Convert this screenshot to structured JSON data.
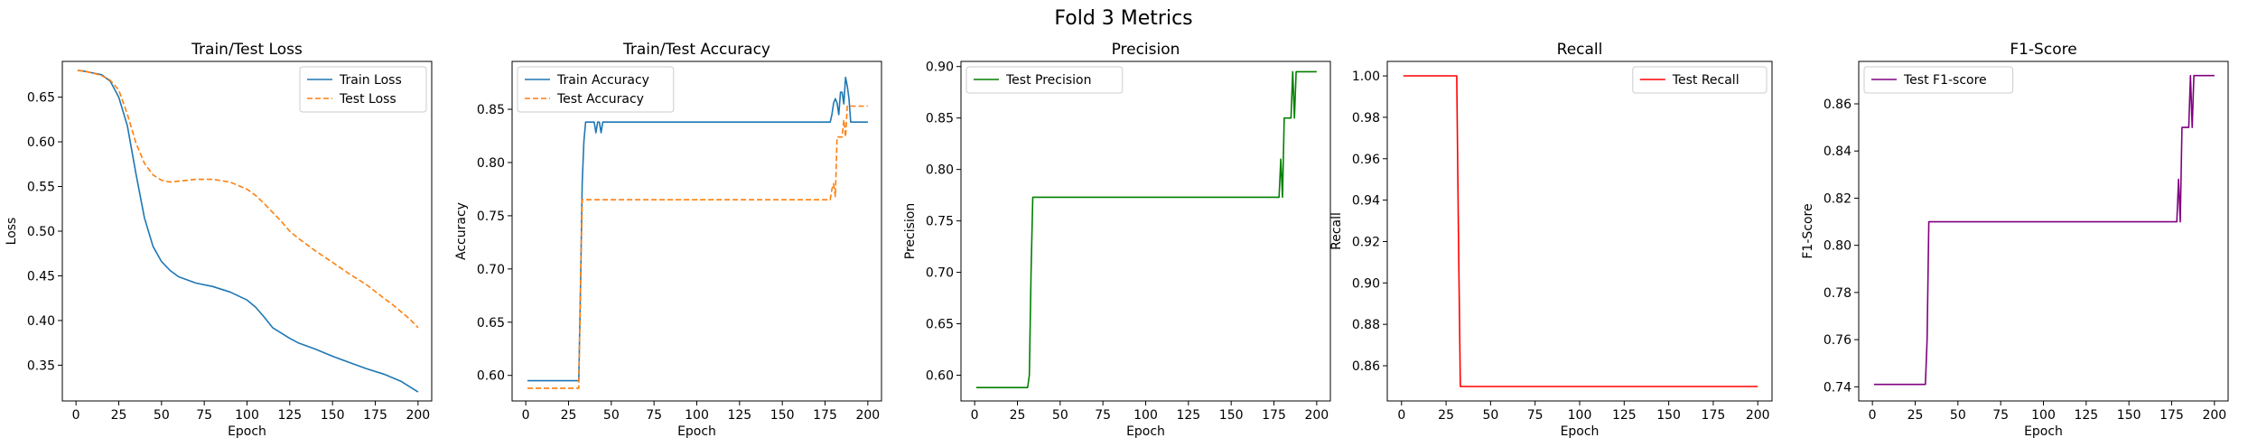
{
  "figure": {
    "title": "Fold 3 Metrics"
  },
  "colors": {
    "blue": "#1f77b4",
    "orange": "#ff7f0e",
    "green": "#008000",
    "red": "#ff0000",
    "purple": "#800080"
  },
  "chart_data": [
    {
      "type": "line",
      "title": "Train/Test Loss",
      "xlabel": "Epoch",
      "ylabel": "Loss",
      "xlim": [
        -8,
        208
      ],
      "ylim": [
        0.31,
        0.69
      ],
      "xticks": [
        0,
        25,
        50,
        75,
        100,
        125,
        150,
        175,
        200
      ],
      "yticks": [
        0.35,
        0.4,
        0.45,
        0.5,
        0.55,
        0.6,
        0.65
      ],
      "ytick_labels": [
        "0.35",
        "0.40",
        "0.45",
        "0.50",
        "0.55",
        "0.60",
        "0.65"
      ],
      "legend": "upper right",
      "series": [
        {
          "name": "Train Loss",
          "color": "#1f77b4",
          "dash": "solid",
          "x": [
            1,
            5,
            10,
            15,
            20,
            25,
            30,
            35,
            40,
            45,
            50,
            55,
            60,
            70,
            80,
            90,
            100,
            105,
            110,
            115,
            120,
            125,
            130,
            140,
            150,
            160,
            170,
            180,
            190,
            200
          ],
          "y": [
            0.68,
            0.679,
            0.677,
            0.675,
            0.668,
            0.65,
            0.618,
            0.565,
            0.515,
            0.483,
            0.466,
            0.456,
            0.449,
            0.442,
            0.438,
            0.432,
            0.423,
            0.415,
            0.404,
            0.392,
            0.386,
            0.38,
            0.375,
            0.368,
            0.36,
            0.353,
            0.346,
            0.34,
            0.332,
            0.32
          ]
        },
        {
          "name": "Test Loss",
          "color": "#ff7f0e",
          "dash": "dashed",
          "x": [
            1,
            5,
            10,
            15,
            20,
            25,
            30,
            35,
            40,
            45,
            50,
            55,
            60,
            70,
            80,
            90,
            100,
            105,
            110,
            115,
            120,
            125,
            130,
            140,
            150,
            160,
            170,
            180,
            185,
            190,
            195,
            200
          ],
          "y": [
            0.68,
            0.679,
            0.677,
            0.674,
            0.669,
            0.658,
            0.631,
            0.599,
            0.576,
            0.563,
            0.557,
            0.555,
            0.556,
            0.558,
            0.558,
            0.555,
            0.547,
            0.54,
            0.531,
            0.521,
            0.511,
            0.5,
            0.492,
            0.478,
            0.465,
            0.452,
            0.44,
            0.425,
            0.418,
            0.41,
            0.402,
            0.392
          ]
        }
      ]
    },
    {
      "type": "line",
      "title": "Train/Test Accuracy",
      "xlabel": "Epoch",
      "ylabel": "Accuracy",
      "xlim": [
        -8,
        208
      ],
      "ylim": [
        0.576,
        0.895
      ],
      "xticks": [
        0,
        25,
        50,
        75,
        100,
        125,
        150,
        175,
        200
      ],
      "yticks": [
        0.6,
        0.65,
        0.7,
        0.75,
        0.8,
        0.85
      ],
      "ytick_labels": [
        "0.60",
        "0.65",
        "0.70",
        "0.75",
        "0.80",
        "0.85"
      ],
      "legend": "upper left",
      "series": [
        {
          "name": "Train Accuracy",
          "color": "#1f77b4",
          "dash": "solid",
          "x": [
            1,
            31,
            32,
            33,
            34,
            35,
            36,
            37,
            38,
            40,
            41,
            42,
            43,
            44,
            45,
            46,
            47,
            48,
            50,
            100,
            150,
            178,
            179,
            180,
            181,
            182,
            183,
            184,
            185,
            186,
            187,
            188,
            189,
            190,
            191,
            192,
            200
          ],
          "y": [
            0.595,
            0.595,
            0.68,
            0.78,
            0.82,
            0.838,
            0.838,
            0.838,
            0.838,
            0.838,
            0.828,
            0.838,
            0.838,
            0.828,
            0.838,
            0.838,
            0.838,
            0.838,
            0.838,
            0.838,
            0.838,
            0.838,
            0.845,
            0.856,
            0.86,
            0.856,
            0.845,
            0.866,
            0.866,
            0.855,
            0.88,
            0.872,
            0.86,
            0.838,
            0.838,
            0.838,
            0.838
          ]
        },
        {
          "name": "Test Accuracy",
          "color": "#ff7f0e",
          "dash": "dashed",
          "x": [
            1,
            31,
            32,
            33,
            34,
            100,
            150,
            178,
            179,
            180,
            181,
            182,
            183,
            184,
            185,
            186,
            187,
            188,
            189,
            190,
            192,
            200
          ],
          "y": [
            0.588,
            0.588,
            0.68,
            0.765,
            0.765,
            0.765,
            0.765,
            0.765,
            0.775,
            0.78,
            0.768,
            0.824,
            0.824,
            0.824,
            0.824,
            0.84,
            0.824,
            0.853,
            0.853,
            0.853,
            0.853,
            0.853
          ]
        }
      ]
    },
    {
      "type": "line",
      "title": "Precision",
      "xlabel": "Epoch",
      "ylabel": "Precision",
      "xlim": [
        -8,
        208
      ],
      "ylim": [
        0.575,
        0.905
      ],
      "xticks": [
        0,
        25,
        50,
        75,
        100,
        125,
        150,
        175,
        200
      ],
      "yticks": [
        0.6,
        0.65,
        0.7,
        0.75,
        0.8,
        0.85,
        0.9
      ],
      "ytick_labels": [
        "0.60",
        "0.65",
        "0.70",
        "0.75",
        "0.80",
        "0.85",
        "0.90"
      ],
      "legend": "upper left",
      "series": [
        {
          "name": "Test Precision",
          "color": "#008000",
          "dash": "solid",
          "x": [
            1,
            31,
            32,
            33,
            34,
            100,
            150,
            178,
            179,
            180,
            181,
            182,
            183,
            184,
            185,
            186,
            187,
            188,
            189,
            190,
            200
          ],
          "y": [
            0.588,
            0.588,
            0.6,
            0.7,
            0.773,
            0.773,
            0.773,
            0.773,
            0.81,
            0.773,
            0.85,
            0.85,
            0.85,
            0.85,
            0.85,
            0.895,
            0.85,
            0.895,
            0.895,
            0.895,
            0.895
          ]
        }
      ]
    },
    {
      "type": "line",
      "title": "Recall",
      "xlabel": "Epoch",
      "ylabel": "Recall",
      "xlim": [
        -8,
        208
      ],
      "ylim": [
        0.843,
        1.007
      ],
      "xticks": [
        0,
        25,
        50,
        75,
        100,
        125,
        150,
        175,
        200
      ],
      "yticks": [
        0.86,
        0.88,
        0.9,
        0.92,
        0.94,
        0.96,
        0.98,
        1.0
      ],
      "ytick_labels": [
        "0.86",
        "0.88",
        "0.90",
        "0.92",
        "0.94",
        "0.96",
        "0.98",
        "1.00"
      ],
      "legend": "upper right",
      "series": [
        {
          "name": "Test Recall",
          "color": "#ff0000",
          "dash": "solid",
          "x": [
            1,
            31,
            32,
            33,
            100,
            150,
            200
          ],
          "y": [
            1.0,
            1.0,
            0.92,
            0.85,
            0.85,
            0.85,
            0.85
          ]
        }
      ]
    },
    {
      "type": "line",
      "title": "F1-Score",
      "xlabel": "Epoch",
      "ylabel": "F1-Score",
      "xlim": [
        -8,
        208
      ],
      "ylim": [
        0.734,
        0.878
      ],
      "xticks": [
        0,
        25,
        50,
        75,
        100,
        125,
        150,
        175,
        200
      ],
      "yticks": [
        0.74,
        0.76,
        0.78,
        0.8,
        0.82,
        0.84,
        0.86
      ],
      "ytick_labels": [
        "0.74",
        "0.76",
        "0.78",
        "0.80",
        "0.82",
        "0.84",
        "0.86"
      ],
      "legend": "upper left",
      "series": [
        {
          "name": "Test F1-score",
          "color": "#800080",
          "dash": "solid",
          "x": [
            1,
            31,
            32,
            33,
            100,
            150,
            178,
            179,
            180,
            181,
            182,
            183,
            184,
            185,
            186,
            187,
            188,
            189,
            190,
            200
          ],
          "y": [
            0.741,
            0.741,
            0.76,
            0.81,
            0.81,
            0.81,
            0.81,
            0.828,
            0.81,
            0.85,
            0.85,
            0.85,
            0.85,
            0.85,
            0.872,
            0.85,
            0.872,
            0.872,
            0.872,
            0.872
          ]
        }
      ]
    }
  ]
}
